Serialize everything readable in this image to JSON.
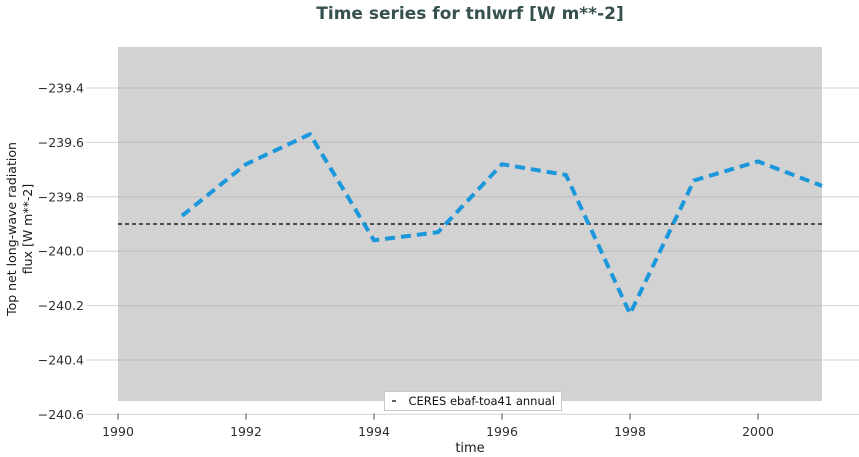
{
  "title": "Time series for tnlwrf [W m**-2]",
  "axis": {
    "xlabel": "time",
    "ylabel_line1": "Top net long-wave radiation",
    "ylabel_line2": "flux [W m**-2]"
  },
  "legend": {
    "entries": [
      {
        "label": "CERES ebaf-toa41 annual",
        "line_style": "dashed",
        "color": "#000000"
      }
    ]
  },
  "colors": {
    "title_text": "#35504e",
    "panel_bg": "#d2d2d2",
    "grid_outer": "#dcdcdc",
    "grid_inner": "#c2c2c2",
    "axis_line": "#cccccc",
    "tick_mark": "#7a7a7a",
    "tick_text": "#2e2e2e",
    "series_line": "#1b97dc",
    "reference_line": "#000000"
  },
  "chart_data": {
    "type": "line",
    "title": "Time series for tnlwrf [W m**-2]",
    "xlabel": "time",
    "ylabel": "Top net long-wave radiation flux [W m**-2]",
    "x_ticks": [
      1990,
      1992,
      1994,
      1996,
      1998,
      2000
    ],
    "y_ticks": [
      -239.4,
      -239.6,
      -239.8,
      -240.0,
      -240.2,
      -240.4,
      -240.6
    ],
    "xlim": [
      1990,
      2001
    ],
    "ylim": [
      -240.6,
      -239.25
    ],
    "grid": true,
    "legend_position": "bottom-center",
    "series": [
      {
        "name": "tnlwrf",
        "style": "dashed",
        "color": "#1b97dc",
        "x": [
          1991,
          1992,
          1993,
          1994,
          1995,
          1996,
          1997,
          1998,
          1999,
          2000,
          2001
        ],
        "values": [
          -239.87,
          -239.68,
          -239.57,
          -239.96,
          -239.93,
          -239.68,
          -239.72,
          -240.23,
          -239.74,
          -239.67,
          -239.76
        ]
      }
    ],
    "reference_line": {
      "label": "CERES ebaf-toa41 annual",
      "value": -239.9,
      "style": "dashed",
      "color": "#000000"
    }
  }
}
